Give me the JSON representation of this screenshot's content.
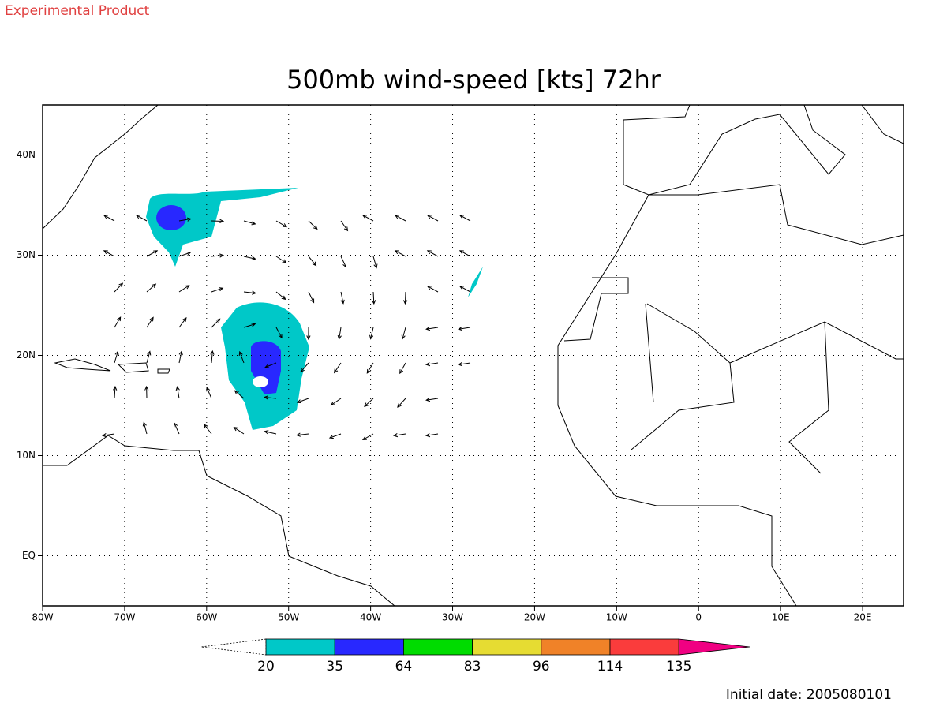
{
  "header": {
    "note": "Experimental Product"
  },
  "map_data": {
    "title": "500mb wind-speed [kts] 72hr",
    "xlim": [
      -80,
      25
    ],
    "ylim": [
      -5,
      45
    ],
    "xticks": [
      {
        "value": -80,
        "label": "80W"
      },
      {
        "value": -70,
        "label": "70W"
      },
      {
        "value": -60,
        "label": "60W"
      },
      {
        "value": -50,
        "label": "50W"
      },
      {
        "value": -40,
        "label": "40W"
      },
      {
        "value": -30,
        "label": "30W"
      },
      {
        "value": -20,
        "label": "20W"
      },
      {
        "value": -10,
        "label": "10W"
      },
      0,
      {
        "value": 10,
        "label": "10E"
      },
      {
        "value": 20,
        "label": "20E"
      }
    ],
    "yticks": [
      {
        "value": 0,
        "label": "EQ"
      },
      {
        "value": 10,
        "label": "10N"
      },
      {
        "value": 20,
        "label": "20N"
      },
      {
        "value": 30,
        "label": "30N"
      },
      {
        "value": 40,
        "label": "40N"
      }
    ],
    "grid": true
  },
  "colorbar": {
    "levels": [
      20,
      35,
      64,
      83,
      96,
      114,
      135
    ],
    "colors": [
      "#ffffff",
      "#00c8c8",
      "#2828ff",
      "#00dc00",
      "#e6dc32",
      "#f08228",
      "#fa3c3c",
      "#f00082"
    ]
  },
  "footer": {
    "initial_date": "Initial date: 2005080101"
  }
}
